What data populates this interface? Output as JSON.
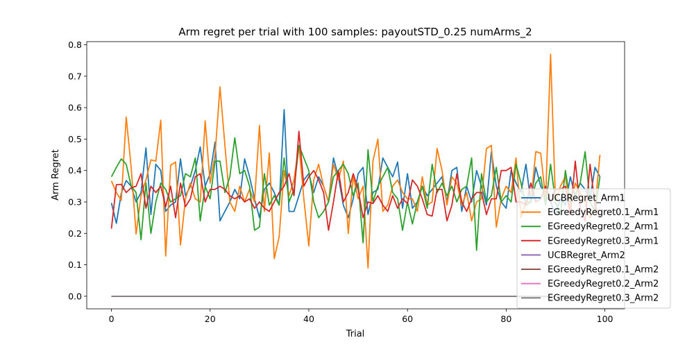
{
  "chart_data": {
    "type": "line",
    "title": "Arm regret per trial with 100 samples: payoutSTD_0.25 numArms_2",
    "xlabel": "Trial",
    "ylabel": "Arm Regret",
    "xlim": [
      -5,
      104
    ],
    "ylim": [
      -0.04,
      0.81
    ],
    "xticks": [
      0,
      20,
      40,
      60,
      80,
      100
    ],
    "yticks": [
      0.0,
      0.1,
      0.2,
      0.3,
      0.4,
      0.5,
      0.6,
      0.7,
      0.8
    ],
    "xtick_labels": [
      "0",
      "20",
      "40",
      "60",
      "80",
      "100"
    ],
    "ytick_labels": [
      "0.0",
      "0.1",
      "0.2",
      "0.3",
      "0.4",
      "0.5",
      "0.6",
      "0.7",
      "0.8"
    ],
    "grid": false,
    "legend_position": "lower-right",
    "x": [
      0,
      1,
      2,
      3,
      4,
      5,
      6,
      7,
      8,
      9,
      10,
      11,
      12,
      13,
      14,
      15,
      16,
      17,
      18,
      19,
      20,
      21,
      22,
      23,
      24,
      25,
      26,
      27,
      28,
      29,
      30,
      31,
      32,
      33,
      34,
      35,
      36,
      37,
      38,
      39,
      40,
      41,
      42,
      43,
      44,
      45,
      46,
      47,
      48,
      49,
      50,
      51,
      52,
      53,
      54,
      55,
      56,
      57,
      58,
      59,
      60,
      61,
      62,
      63,
      64,
      65,
      66,
      67,
      68,
      69,
      70,
      71,
      72,
      73,
      74,
      75,
      76,
      77,
      78,
      79,
      80,
      81,
      82,
      83,
      84,
      85,
      86,
      87,
      88,
      89,
      90,
      91,
      92,
      93,
      94,
      95,
      96,
      97,
      98,
      99
    ],
    "series": [
      {
        "name": "UCBRegret_Arm1",
        "color": "#1f77b4",
        "values": [
          0.297,
          0.232,
          0.328,
          0.368,
          0.35,
          0.3,
          0.33,
          0.472,
          0.26,
          0.42,
          0.4,
          0.27,
          0.29,
          0.3,
          0.437,
          0.32,
          0.35,
          0.4,
          0.475,
          0.35,
          0.39,
          0.49,
          0.24,
          0.27,
          0.3,
          0.34,
          0.31,
          0.437,
          0.38,
          0.31,
          0.25,
          0.34,
          0.36,
          0.33,
          0.29,
          0.594,
          0.27,
          0.27,
          0.32,
          0.37,
          0.39,
          0.33,
          0.38,
          0.35,
          0.3,
          0.44,
          0.38,
          0.29,
          0.25,
          0.31,
          0.39,
          0.41,
          0.26,
          0.33,
          0.34,
          0.44,
          0.41,
          0.38,
          0.427,
          0.28,
          0.39,
          0.28,
          0.3,
          0.35,
          0.32,
          0.34,
          0.36,
          0.38,
          0.3,
          0.4,
          0.41,
          0.27,
          0.35,
          0.3,
          0.4,
          0.35,
          0.29,
          0.46,
          0.35,
          0.3,
          0.28,
          0.4,
          0.36,
          0.33,
          0.42,
          0.3,
          0.41,
          0.35,
          0.32,
          0.3,
          0.26,
          0.31,
          0.29,
          0.38,
          0.32,
          0.36,
          0.34,
          0.31,
          0.41,
          0.38
        ]
      },
      {
        "name": "EGreedyRegret0.1_Arm1",
        "color": "#ff7f0e",
        "values": [
          0.367,
          0.33,
          0.305,
          0.57,
          0.41,
          0.198,
          0.32,
          0.37,
          0.434,
          0.43,
          0.56,
          0.128,
          0.417,
          0.427,
          0.163,
          0.31,
          0.36,
          0.31,
          0.3,
          0.558,
          0.36,
          0.45,
          0.666,
          0.48,
          0.3,
          0.27,
          0.35,
          0.3,
          0.34,
          0.3,
          0.543,
          0.27,
          0.456,
          0.12,
          0.19,
          0.4,
          0.32,
          0.37,
          0.48,
          0.31,
          0.16,
          0.37,
          0.42,
          0.35,
          0.3,
          0.42,
          0.37,
          0.43,
          0.2,
          0.38,
          0.31,
          0.35,
          0.09,
          0.43,
          0.5,
          0.27,
          0.29,
          0.35,
          0.37,
          0.33,
          0.31,
          0.31,
          0.27,
          0.38,
          0.29,
          0.3,
          0.47,
          0.4,
          0.29,
          0.38,
          0.36,
          0.29,
          0.33,
          0.24,
          0.3,
          0.31,
          0.47,
          0.48,
          0.22,
          0.31,
          0.35,
          0.33,
          0.44,
          0.25,
          0.3,
          0.3,
          0.46,
          0.455,
          0.31,
          0.77,
          0.3,
          0.35,
          0.38,
          0.28,
          0.36,
          0.33,
          0.3,
          0.25,
          0.28,
          0.45
        ]
      },
      {
        "name": "EGreedyRegret0.2_Arm1",
        "color": "#2ca02c",
        "values": [
          0.38,
          0.41,
          0.437,
          0.42,
          0.35,
          0.33,
          0.18,
          0.36,
          0.2,
          0.3,
          0.36,
          0.34,
          0.3,
          0.31,
          0.32,
          0.39,
          0.38,
          0.44,
          0.24,
          0.35,
          0.31,
          0.43,
          0.43,
          0.33,
          0.38,
          0.504,
          0.39,
          0.4,
          0.35,
          0.21,
          0.22,
          0.39,
          0.29,
          0.32,
          0.29,
          0.44,
          0.3,
          0.34,
          0.48,
          0.44,
          0.4,
          0.3,
          0.25,
          0.27,
          0.3,
          0.38,
          0.4,
          0.42,
          0.39,
          0.32,
          0.36,
          0.17,
          0.466,
          0.3,
          0.35,
          0.38,
          0.41,
          0.33,
          0.31,
          0.21,
          0.3,
          0.23,
          0.3,
          0.35,
          0.28,
          0.42,
          0.33,
          0.36,
          0.32,
          0.35,
          0.3,
          0.34,
          0.35,
          0.44,
          0.146,
          0.39,
          0.3,
          0.32,
          0.41,
          0.3,
          0.32,
          0.3,
          0.42,
          0.36,
          0.29,
          0.3,
          0.36,
          0.38,
          0.29,
          0.42,
          0.3,
          0.26,
          0.4,
          0.3,
          0.32,
          0.36,
          0.46,
          0.3,
          0.27,
          0.38
        ]
      },
      {
        "name": "EGreedyRegret0.3_Arm1",
        "color": "#d62728",
        "values": [
          0.215,
          0.355,
          0.356,
          0.33,
          0.345,
          0.35,
          0.39,
          0.28,
          0.35,
          0.33,
          0.35,
          0.285,
          0.35,
          0.25,
          0.36,
          0.285,
          0.31,
          0.38,
          0.39,
          0.3,
          0.34,
          0.34,
          0.35,
          0.34,
          0.32,
          0.31,
          0.32,
          0.3,
          0.31,
          0.28,
          0.3,
          0.28,
          0.27,
          0.3,
          0.33,
          0.35,
          0.39,
          0.32,
          0.525,
          0.35,
          0.38,
          0.4,
          0.37,
          0.33,
          0.21,
          0.3,
          0.4,
          0.3,
          0.33,
          0.39,
          0.34,
          0.25,
          0.3,
          0.295,
          0.32,
          0.29,
          0.27,
          0.32,
          0.28,
          0.31,
          0.295,
          0.37,
          0.35,
          0.31,
          0.26,
          0.255,
          0.34,
          0.34,
          0.24,
          0.29,
          0.39,
          0.3,
          0.27,
          0.31,
          0.33,
          0.33,
          0.26,
          0.31,
          0.31,
          0.4,
          0.4,
          0.41,
          0.3,
          0.3,
          0.29,
          0.36,
          0.3,
          0.31,
          0.35,
          0.3,
          0.34,
          0.34,
          0.35,
          0.26,
          0.43,
          0.28,
          0.24,
          0.42,
          0.29,
          0.25
        ]
      },
      {
        "name": "UCBRegret_Arm2",
        "color": "#9467bd",
        "constant": 0.0
      },
      {
        "name": "EGreedyRegret0.1_Arm2",
        "color": "#8c564b",
        "constant": 0.0
      },
      {
        "name": "EGreedyRegret0.2_Arm2",
        "color": "#e377c2",
        "constant": 0.0
      },
      {
        "name": "EGreedyRegret0.3_Arm2",
        "color": "#7f7f7f",
        "constant": 0.0
      }
    ]
  }
}
